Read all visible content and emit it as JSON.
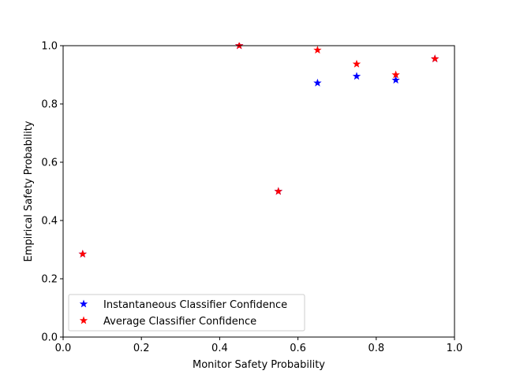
{
  "chart_data": {
    "type": "scatter",
    "title": "",
    "xlabel": "Monitor Safety Probability",
    "ylabel": "Empirical Safety Probability",
    "xlim": [
      0.0,
      1.0
    ],
    "ylim": [
      0.0,
      1.0
    ],
    "x_ticks": [
      "0.0",
      "0.2",
      "0.4",
      "0.6",
      "0.8",
      "1.0"
    ],
    "y_ticks": [
      "0.0",
      "0.2",
      "0.4",
      "0.6",
      "0.8",
      "1.0"
    ],
    "grid": false,
    "legend_position": "lower-left",
    "marker": "star",
    "series": [
      {
        "name": "Instantaneous Classifier Confidence",
        "color": "#0000ff",
        "x": [
          0.05,
          0.45,
          0.55,
          0.65,
          0.75,
          0.85,
          0.95
        ],
        "y": [
          0.285,
          1.0,
          0.5,
          0.872,
          0.895,
          0.882,
          0.955
        ]
      },
      {
        "name": "Average Classifier Confidence",
        "color": "#ff0000",
        "x": [
          0.05,
          0.45,
          0.55,
          0.65,
          0.75,
          0.85,
          0.95
        ],
        "y": [
          0.285,
          1.0,
          0.5,
          0.985,
          0.937,
          0.9,
          0.955
        ]
      }
    ]
  }
}
